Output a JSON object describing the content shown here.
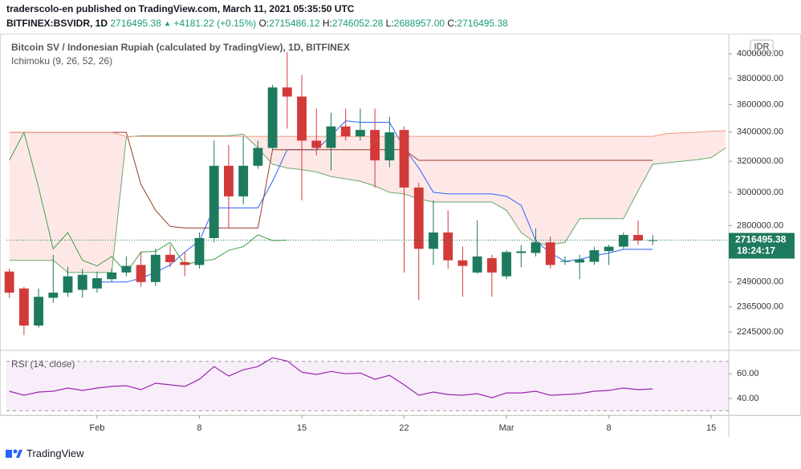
{
  "header": {
    "line1": "traderscolo-en published on TradingView.com, March 11, 2021 05:35:50 UTC",
    "symbol": "BITFINEX:BSVIDR, 1D",
    "price": "2716495.38",
    "arrow": "▲",
    "change": "+4181.22 (+0.15%)",
    "o_label": "O:",
    "o": "2715486.12",
    "h_label": "H:",
    "h": "2746052.28",
    "l_label": "L:",
    "l": "2688957.00",
    "c_label": "C:",
    "c": "2716495.38"
  },
  "footer": {
    "brand": "TradingView"
  },
  "chart_data": [
    {
      "type": "candlestick",
      "title": "Bitcoin SV / Indonesian Rupiah (calculated by TradingView), 1D, BITFINEX",
      "subtitle": "Ichimoku (9, 26, 52, 26)",
      "currency": "IDR",
      "countdown": "18:24:17",
      "log_scale": true,
      "grid": false,
      "x": [
        0,
        1,
        2,
        3,
        4,
        5,
        6,
        7,
        8,
        9,
        10,
        11,
        12,
        13,
        14,
        15,
        16,
        17,
        18,
        19,
        20,
        21,
        22,
        23,
        24,
        25,
        26,
        27,
        28,
        29,
        30,
        31,
        32,
        33,
        34,
        35,
        36,
        37,
        38,
        39,
        40,
        41,
        42,
        43,
        44,
        45,
        46,
        47,
        48,
        49
      ],
      "xlim": [
        -0.2,
        49.2
      ],
      "xticks": [
        {
          "value": 6,
          "label": "Feb"
        },
        {
          "value": 13,
          "label": "8"
        },
        {
          "value": 20,
          "label": "15"
        },
        {
          "value": 27,
          "label": "22"
        },
        {
          "value": 34,
          "label": "Mar"
        },
        {
          "value": 41,
          "label": "8"
        },
        {
          "value": 48,
          "label": "15"
        }
      ],
      "ylim": [
        2168000,
        4150000
      ],
      "yticks": [
        {
          "value": 4000000,
          "label": "4000000.00"
        },
        {
          "value": 3800000,
          "label": "3800000.00"
        },
        {
          "value": 3600000,
          "label": "3600000.00"
        },
        {
          "value": 3400000,
          "label": "3400000.00"
        },
        {
          "value": 3200000,
          "label": "3200000.00"
        },
        {
          "value": 3000000,
          "label": "3000000.00"
        },
        {
          "value": 2800000,
          "label": "2800000.00"
        },
        {
          "value": 2490000,
          "label": "2490000.00"
        },
        {
          "value": 2365000,
          "label": "2365000.00"
        },
        {
          "value": 2245000,
          "label": "2245000.00"
        }
      ],
      "up_color": "#1e7a5e",
      "down_color": "#d23a3a",
      "last_color": "#1e7a5e",
      "cloud_color": "rgba(244, 67, 54, 0.12)",
      "open": [
        2545000,
        2457000,
        2275000,
        2410000,
        2436000,
        2450000,
        2457000,
        2505000,
        2540000,
        2580000,
        2490000,
        2635000,
        2595000,
        2580000,
        2728000,
        3170000,
        2975000,
        3170000,
        3290000,
        3730000,
        3660000,
        3340000,
        3290000,
        3440000,
        3370000,
        3415000,
        3206000,
        3415000,
        3030000,
        2668000,
        2760000,
        2605000,
        2540000,
        2617000,
        2520000,
        2645000,
        2645000,
        2704000,
        2597000,
        2593000,
        2597000,
        2655000,
        2680000,
        2746000,
        2715486.12,
        null,
        null,
        null,
        null,
        null
      ],
      "high": [
        2560000,
        2465000,
        2457000,
        2635000,
        2570000,
        2560000,
        2545000,
        2560000,
        2626000,
        2650000,
        2670000,
        2690000,
        2650000,
        2760000,
        3340000,
        3310000,
        3370000,
        3340000,
        3750000,
        4013000,
        3830000,
        3570000,
        3540000,
        3570000,
        3570000,
        3570000,
        3510000,
        3440000,
        3060000,
        2950000,
        2890000,
        2680000,
        2830000,
        2635000,
        2660000,
        2690000,
        2783000,
        2737000,
        2626000,
        2635000,
        2680000,
        2690000,
        2760000,
        2830000,
        2746052.28,
        null,
        null,
        null,
        null,
        null
      ],
      "low": [
        2410000,
        2230000,
        2265000,
        2385000,
        2415000,
        2410000,
        2436000,
        2490000,
        2520000,
        2465000,
        2470000,
        2568000,
        2520000,
        2560000,
        2704000,
        2783000,
        2926000,
        3150000,
        3276000,
        3425000,
        2950000,
        3240000,
        3140000,
        3340000,
        3340000,
        3030000,
        3160000,
        2540000,
        2398000,
        2580000,
        2560000,
        2415000,
        2532000,
        2415000,
        2505000,
        2568000,
        2626000,
        2560000,
        2580000,
        2505000,
        2580000,
        2580000,
        2668000,
        2690000,
        2688957,
        null,
        null,
        null,
        null,
        null
      ],
      "close": [
        2436000,
        2275000,
        2415000,
        2436000,
        2520000,
        2528000,
        2510000,
        2540000,
        2575000,
        2490000,
        2635000,
        2595000,
        2580000,
        2728000,
        3170000,
        2975000,
        3170000,
        3290000,
        3730000,
        3660000,
        3340000,
        3290000,
        3440000,
        3370000,
        3415000,
        3206000,
        3398000,
        3030000,
        2668000,
        2760000,
        2605000,
        2575000,
        2626000,
        2540000,
        2650000,
        2654000,
        2704000,
        2580000,
        2601000,
        2610000,
        2660000,
        2680000,
        2746000,
        2714000,
        2716495.38,
        null,
        null,
        null,
        null,
        null
      ],
      "series": [
        {
          "color": "#2962ff",
          "values": [
            null,
            null,
            null,
            null,
            null,
            null,
            2490000,
            2490000,
            2490000,
            2510000,
            2540000,
            2580000,
            2650000,
            2714000,
            2905000,
            2905000,
            2905000,
            2905000,
            3070000,
            3278000,
            3278000,
            3278000,
            3375000,
            3480000,
            3470000,
            3470000,
            3470000,
            3290000,
            3155000,
            3000000,
            2990000,
            2990000,
            2990000,
            2990000,
            2975000,
            2920000,
            2714000,
            2645000,
            2600000,
            2610000,
            2630000,
            2645000,
            2665000,
            2665000,
            2665000,
            null,
            null,
            null,
            null,
            null
          ]
        },
        {
          "color": "#9c3a2c",
          "values": [
            3398000,
            3398000,
            3398000,
            3398000,
            3398000,
            3398000,
            3398000,
            3398000,
            3398000,
            3050000,
            2890000,
            2795000,
            2786000,
            2786000,
            2786000,
            2786000,
            2786000,
            2786000,
            3278000,
            3278000,
            3278000,
            3278000,
            3278000,
            3278000,
            3278000,
            3278000,
            3278000,
            3278000,
            3206000,
            3206000,
            3206000,
            3206000,
            3206000,
            3206000,
            3206000,
            3206000,
            3206000,
            3206000,
            3206000,
            3206000,
            3206000,
            3206000,
            3206000,
            3206000,
            3206000,
            null,
            null,
            null,
            null,
            null
          ]
        },
        {
          "color": "#43a047",
          "values": [
            3206000,
            3398000,
            3030000,
            2668000,
            2760000,
            2605000,
            2575000,
            2626000,
            2540000,
            2650000,
            2654000,
            2704000,
            2580000,
            2601000,
            2610000,
            2660000,
            2680000,
            2746000,
            2714000,
            2716000,
            null,
            null,
            null,
            null,
            null,
            null,
            null,
            null,
            null,
            null,
            null,
            null,
            null,
            null,
            null,
            null,
            null,
            null,
            null,
            null,
            null,
            null,
            null,
            null,
            null,
            null,
            null,
            null,
            null,
            null
          ]
        },
        {
          "color": "#66a96a",
          "values": [
            2605000,
            2605000,
            2605000,
            2605000,
            2540000,
            2540000,
            2540000,
            2540000,
            3365000,
            3375000,
            3375000,
            3375000,
            3375000,
            3375000,
            3375000,
            3375000,
            3385000,
            3290000,
            3180000,
            3155000,
            3145000,
            3130000,
            3100000,
            3085000,
            3070000,
            3040000,
            3000000,
            2990000,
            2960000,
            2940000,
            2940000,
            2940000,
            2940000,
            2940000,
            2890000,
            2760000,
            2700000,
            2690000,
            2704000,
            2840000,
            2840000,
            2840000,
            2840000,
            3010000,
            3180000,
            3190000,
            3200000,
            3210000,
            3225000,
            3290000
          ]
        },
        {
          "color": "#f0997c",
          "values": [
            3398000,
            3398000,
            3398000,
            3398000,
            3398000,
            3398000,
            3398000,
            3398000,
            3370000,
            3370000,
            3370000,
            3370000,
            3370000,
            3370000,
            3370000,
            3370000,
            3370000,
            3370000,
            3370000,
            3370000,
            3370000,
            3370000,
            3370000,
            3370000,
            3370000,
            3370000,
            3370000,
            3370000,
            3370000,
            3370000,
            3370000,
            3370000,
            3370000,
            3370000,
            3370000,
            3370000,
            3370000,
            3370000,
            3370000,
            3370000,
            3370000,
            3370000,
            3370000,
            3370000,
            3370000,
            3390000,
            3395000,
            3398000,
            3405000,
            3410000
          ]
        }
      ]
    },
    {
      "type": "line",
      "title": "RSI (14, close)",
      "color": "#9c27b0",
      "band": [
        30,
        70
      ],
      "band_color": "rgba(156, 39, 176, 0.08)",
      "ylim": [
        27,
        77
      ],
      "yticks": [
        {
          "value": 60,
          "label": "60.00"
        },
        {
          "value": 40,
          "label": "40.00"
        }
      ],
      "values": [
        45.8,
        42.6,
        45.2,
        45.8,
        48.4,
        46.5,
        48.4,
        49.7,
        50.3,
        47.1,
        52.3,
        51,
        49.7,
        55.5,
        65.8,
        58.1,
        63.2,
        65.8,
        72.9,
        70.3,
        61.3,
        59.4,
        61.9,
        60,
        60.6,
        55.5,
        58.7,
        51,
        42.6,
        45.2,
        43.2,
        42.6,
        43.9,
        40.6,
        44.5,
        44.5,
        45.8,
        42.6,
        43.2,
        43.9,
        45.8,
        46.5,
        48.4,
        47.1,
        47.7,
        null,
        null,
        null,
        null,
        null
      ]
    }
  ]
}
